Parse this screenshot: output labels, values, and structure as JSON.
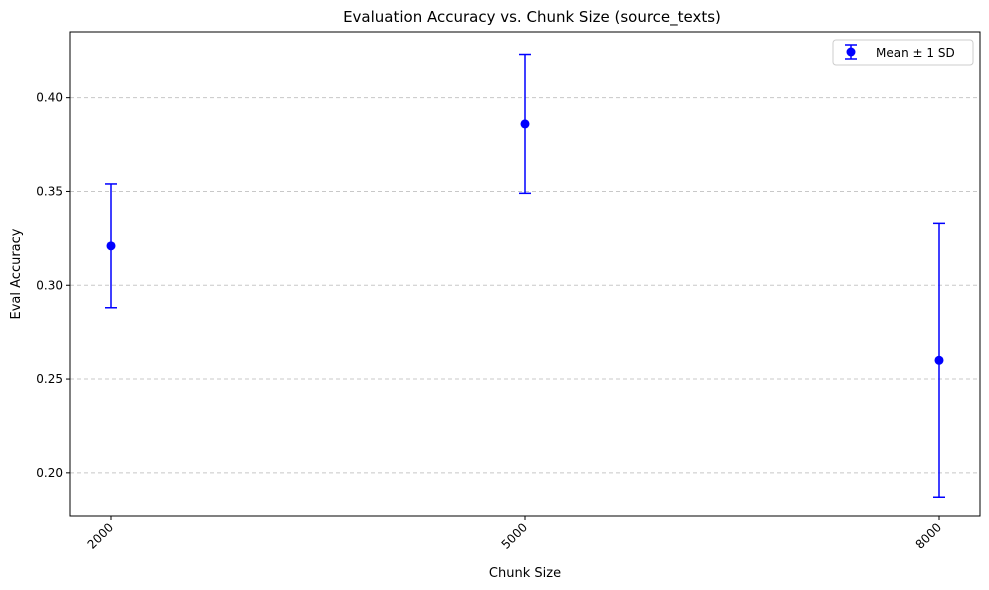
{
  "chart_data": {
    "type": "errorbar",
    "title": "Evaluation Accuracy vs. Chunk Size (source_texts)",
    "xlabel": "Chunk Size",
    "ylabel": "Eval Accuracy",
    "categories": [
      "2000",
      "5000",
      "8000"
    ],
    "series": [
      {
        "name": "Mean ± 1 SD",
        "color": "#0000ff",
        "values": [
          0.321,
          0.386,
          0.26
        ],
        "sd": [
          0.033,
          0.037,
          0.073
        ]
      }
    ],
    "ylim": [
      0.177,
      0.435
    ],
    "yticks": [
      "0.20",
      "0.25",
      "0.30",
      "0.35",
      "0.40"
    ],
    "grid": "y-dashed",
    "legend_position": "top-right"
  }
}
